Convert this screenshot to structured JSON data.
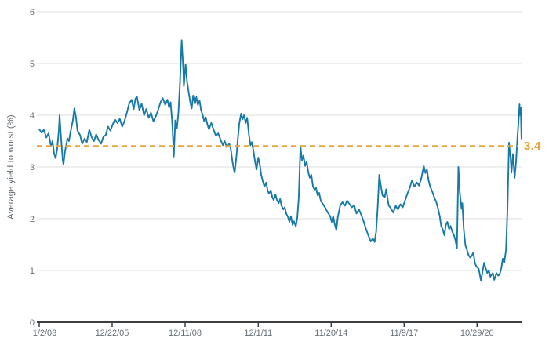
{
  "chart_data": {
    "type": "line",
    "title": "",
    "xlabel": "",
    "ylabel": "Average yield to worst (%)",
    "ylim": [
      0,
      6
    ],
    "y_ticks": [
      0,
      1,
      2,
      3,
      4,
      5,
      6
    ],
    "x_ticks": [
      {
        "label": "1/2/03",
        "year": 2003.0
      },
      {
        "label": "12/22/05",
        "year": 2005.97
      },
      {
        "label": "12/11/08",
        "year": 2008.94
      },
      {
        "label": "12/1/11",
        "year": 2011.92
      },
      {
        "label": "11/20/14",
        "year": 2014.89
      },
      {
        "label": "11/9/17",
        "year": 2017.86
      },
      {
        "label": "10/29/20",
        "year": 2020.83
      }
    ],
    "grid": "horizontal-light",
    "legend": "none",
    "reference_line": {
      "value": 3.4,
      "label": "3.4",
      "color": "#e8a33c",
      "style": "dashed"
    },
    "series": [
      {
        "name": "Average yield to worst (%)",
        "color": "#1779a7",
        "points": [
          [
            2003.0,
            3.73
          ],
          [
            2003.1,
            3.66
          ],
          [
            2003.19,
            3.72
          ],
          [
            2003.29,
            3.57
          ],
          [
            2003.38,
            3.65
          ],
          [
            2003.48,
            3.4
          ],
          [
            2003.54,
            3.5
          ],
          [
            2003.61,
            3.25
          ],
          [
            2003.67,
            3.17
          ],
          [
            2003.73,
            3.35
          ],
          [
            2003.8,
            3.7
          ],
          [
            2003.83,
            4.0
          ],
          [
            2003.89,
            3.55
          ],
          [
            2003.96,
            3.12
          ],
          [
            2003.99,
            3.05
          ],
          [
            2004.05,
            3.3
          ],
          [
            2004.15,
            3.55
          ],
          [
            2004.21,
            3.5
          ],
          [
            2004.27,
            3.67
          ],
          [
            2004.37,
            3.9
          ],
          [
            2004.43,
            4.13
          ],
          [
            2004.5,
            3.95
          ],
          [
            2004.56,
            3.7
          ],
          [
            2004.66,
            3.62
          ],
          [
            2004.75,
            3.45
          ],
          [
            2004.85,
            3.55
          ],
          [
            2004.94,
            3.48
          ],
          [
            2005.04,
            3.72
          ],
          [
            2005.13,
            3.58
          ],
          [
            2005.23,
            3.5
          ],
          [
            2005.32,
            3.63
          ],
          [
            2005.42,
            3.52
          ],
          [
            2005.52,
            3.45
          ],
          [
            2005.61,
            3.58
          ],
          [
            2005.71,
            3.62
          ],
          [
            2005.8,
            3.78
          ],
          [
            2005.9,
            3.7
          ],
          [
            2005.99,
            3.82
          ],
          [
            2006.09,
            3.92
          ],
          [
            2006.18,
            3.85
          ],
          [
            2006.28,
            3.93
          ],
          [
            2006.38,
            3.78
          ],
          [
            2006.47,
            3.88
          ],
          [
            2006.57,
            4.05
          ],
          [
            2006.66,
            4.22
          ],
          [
            2006.76,
            4.3
          ],
          [
            2006.85,
            4.12
          ],
          [
            2006.92,
            4.32
          ],
          [
            2006.98,
            4.36
          ],
          [
            2007.08,
            4.1
          ],
          [
            2007.17,
            4.22
          ],
          [
            2007.27,
            4.0
          ],
          [
            2007.36,
            4.12
          ],
          [
            2007.46,
            3.95
          ],
          [
            2007.55,
            4.05
          ],
          [
            2007.65,
            3.88
          ],
          [
            2007.75,
            3.98
          ],
          [
            2007.84,
            4.1
          ],
          [
            2007.94,
            4.25
          ],
          [
            2008.03,
            4.33
          ],
          [
            2008.13,
            4.2
          ],
          [
            2008.22,
            4.3
          ],
          [
            2008.29,
            4.15
          ],
          [
            2008.35,
            4.25
          ],
          [
            2008.41,
            3.9
          ],
          [
            2008.45,
            3.55
          ],
          [
            2008.48,
            3.2
          ],
          [
            2008.54,
            3.9
          ],
          [
            2008.61,
            3.75
          ],
          [
            2008.67,
            4.05
          ],
          [
            2008.73,
            4.6
          ],
          [
            2008.8,
            5.45
          ],
          [
            2008.86,
            4.95
          ],
          [
            2008.89,
            4.56
          ],
          [
            2008.96,
            4.99
          ],
          [
            2009.02,
            4.65
          ],
          [
            2009.08,
            4.46
          ],
          [
            2009.15,
            4.25
          ],
          [
            2009.21,
            4.13
          ],
          [
            2009.27,
            4.38
          ],
          [
            2009.34,
            4.22
          ],
          [
            2009.4,
            4.35
          ],
          [
            2009.46,
            4.2
          ],
          [
            2009.53,
            4.28
          ],
          [
            2009.59,
            4.1
          ],
          [
            2009.66,
            4.0
          ],
          [
            2009.72,
            3.88
          ],
          [
            2009.78,
            3.96
          ],
          [
            2009.85,
            3.82
          ],
          [
            2009.91,
            3.73
          ],
          [
            2010.01,
            3.85
          ],
          [
            2010.1,
            3.72
          ],
          [
            2010.2,
            3.6
          ],
          [
            2010.29,
            3.65
          ],
          [
            2010.39,
            3.52
          ],
          [
            2010.48,
            3.42
          ],
          [
            2010.55,
            3.5
          ],
          [
            2010.64,
            3.38
          ],
          [
            2010.74,
            3.45
          ],
          [
            2010.8,
            3.35
          ],
          [
            2010.87,
            3.1
          ],
          [
            2010.93,
            2.94
          ],
          [
            2010.96,
            2.89
          ],
          [
            2011.03,
            3.2
          ],
          [
            2011.09,
            3.55
          ],
          [
            2011.15,
            3.85
          ],
          [
            2011.22,
            4.03
          ],
          [
            2011.28,
            3.92
          ],
          [
            2011.34,
            4.0
          ],
          [
            2011.41,
            3.85
          ],
          [
            2011.47,
            3.95
          ],
          [
            2011.54,
            3.62
          ],
          [
            2011.6,
            3.42
          ],
          [
            2011.66,
            3.48
          ],
          [
            2011.73,
            3.3
          ],
          [
            2011.79,
            3.1
          ],
          [
            2011.85,
            2.95
          ],
          [
            2011.92,
            3.18
          ],
          [
            2011.98,
            3.05
          ],
          [
            2012.04,
            2.85
          ],
          [
            2012.11,
            2.72
          ],
          [
            2012.17,
            2.62
          ],
          [
            2012.24,
            2.7
          ],
          [
            2012.3,
            2.55
          ],
          [
            2012.36,
            2.48
          ],
          [
            2012.43,
            2.55
          ],
          [
            2012.49,
            2.42
          ],
          [
            2012.55,
            2.36
          ],
          [
            2012.62,
            2.47
          ],
          [
            2012.68,
            2.36
          ],
          [
            2012.75,
            2.3
          ],
          [
            2012.81,
            2.38
          ],
          [
            2012.87,
            2.25
          ],
          [
            2012.94,
            2.18
          ],
          [
            2013.0,
            2.22
          ],
          [
            2013.06,
            2.1
          ],
          [
            2013.13,
            2.03
          ],
          [
            2013.19,
            1.94
          ],
          [
            2013.25,
            2.05
          ],
          [
            2013.32,
            1.88
          ],
          [
            2013.38,
            1.95
          ],
          [
            2013.45,
            1.85
          ],
          [
            2013.51,
            2.03
          ],
          [
            2013.57,
            2.4
          ],
          [
            2013.64,
            3.41
          ],
          [
            2013.7,
            3.12
          ],
          [
            2013.76,
            3.22
          ],
          [
            2013.83,
            3.02
          ],
          [
            2013.89,
            3.1
          ],
          [
            2013.96,
            2.89
          ],
          [
            2014.02,
            2.79
          ],
          [
            2014.08,
            2.85
          ],
          [
            2014.15,
            2.62
          ],
          [
            2014.21,
            2.56
          ],
          [
            2014.27,
            2.6
          ],
          [
            2014.34,
            2.45
          ],
          [
            2014.4,
            2.5
          ],
          [
            2014.47,
            2.34
          ],
          [
            2014.56,
            2.28
          ],
          [
            2014.66,
            2.2
          ],
          [
            2014.75,
            2.12
          ],
          [
            2014.85,
            2.05
          ],
          [
            2014.91,
            1.94
          ],
          [
            2014.97,
            2.05
          ],
          [
            2015.04,
            1.88
          ],
          [
            2015.1,
            1.78
          ],
          [
            2015.16,
            2.03
          ],
          [
            2015.26,
            2.26
          ],
          [
            2015.35,
            2.32
          ],
          [
            2015.45,
            2.25
          ],
          [
            2015.54,
            2.35
          ],
          [
            2015.64,
            2.28
          ],
          [
            2015.73,
            2.22
          ],
          [
            2015.83,
            2.26
          ],
          [
            2015.92,
            2.1
          ],
          [
            2016.02,
            2.18
          ],
          [
            2016.11,
            2.08
          ],
          [
            2016.21,
            1.95
          ],
          [
            2016.31,
            1.8
          ],
          [
            2016.4,
            1.68
          ],
          [
            2016.5,
            1.56
          ],
          [
            2016.59,
            1.62
          ],
          [
            2016.66,
            1.55
          ],
          [
            2016.72,
            1.75
          ],
          [
            2016.78,
            2.2
          ],
          [
            2016.85,
            2.85
          ],
          [
            2016.91,
            2.65
          ],
          [
            2016.98,
            2.45
          ],
          [
            2017.07,
            2.41
          ],
          [
            2017.13,
            2.57
          ],
          [
            2017.23,
            2.26
          ],
          [
            2017.32,
            2.2
          ],
          [
            2017.42,
            2.12
          ],
          [
            2017.52,
            2.25
          ],
          [
            2017.61,
            2.18
          ],
          [
            2017.71,
            2.28
          ],
          [
            2017.8,
            2.22
          ],
          [
            2017.9,
            2.35
          ],
          [
            2017.99,
            2.48
          ],
          [
            2018.09,
            2.6
          ],
          [
            2018.18,
            2.74
          ],
          [
            2018.28,
            2.62
          ],
          [
            2018.38,
            2.7
          ],
          [
            2018.47,
            2.64
          ],
          [
            2018.57,
            2.8
          ],
          [
            2018.66,
            3.02
          ],
          [
            2018.73,
            2.88
          ],
          [
            2018.79,
            2.95
          ],
          [
            2018.85,
            2.75
          ],
          [
            2018.92,
            2.62
          ],
          [
            2019.01,
            2.52
          ],
          [
            2019.08,
            2.42
          ],
          [
            2019.17,
            2.32
          ],
          [
            2019.24,
            2.2
          ],
          [
            2019.31,
            2.05
          ],
          [
            2019.37,
            1.86
          ],
          [
            2019.43,
            1.8
          ],
          [
            2019.5,
            1.68
          ],
          [
            2019.56,
            1.88
          ],
          [
            2019.62,
            1.94
          ],
          [
            2019.69,
            1.8
          ],
          [
            2019.75,
            1.86
          ],
          [
            2019.82,
            1.75
          ],
          [
            2019.88,
            1.7
          ],
          [
            2019.94,
            1.6
          ],
          [
            2020.01,
            1.43
          ],
          [
            2020.07,
            3.0
          ],
          [
            2020.13,
            2.5
          ],
          [
            2020.2,
            2.19
          ],
          [
            2020.23,
            2.3
          ],
          [
            2020.29,
            1.8
          ],
          [
            2020.36,
            1.48
          ],
          [
            2020.42,
            1.4
          ],
          [
            2020.48,
            1.3
          ],
          [
            2020.55,
            1.25
          ],
          [
            2020.61,
            1.28
          ],
          [
            2020.68,
            1.35
          ],
          [
            2020.74,
            1.15
          ],
          [
            2020.8,
            1.08
          ],
          [
            2020.9,
            1.03
          ],
          [
            2020.99,
            0.8
          ],
          [
            2021.06,
            1.0
          ],
          [
            2021.12,
            1.15
          ],
          [
            2021.18,
            1.05
          ],
          [
            2021.25,
            0.95
          ],
          [
            2021.31,
            1.0
          ],
          [
            2021.37,
            0.88
          ],
          [
            2021.47,
            0.95
          ],
          [
            2021.53,
            0.82
          ],
          [
            2021.62,
            0.95
          ],
          [
            2021.69,
            0.9
          ],
          [
            2021.75,
            0.93
          ],
          [
            2021.82,
            1.05
          ],
          [
            2021.88,
            1.23
          ],
          [
            2021.94,
            1.15
          ],
          [
            2022.01,
            1.4
          ],
          [
            2022.07,
            2.2
          ],
          [
            2022.13,
            3.47
          ],
          [
            2022.2,
            3.15
          ],
          [
            2022.23,
            2.89
          ],
          [
            2022.29,
            3.25
          ],
          [
            2022.36,
            2.79
          ],
          [
            2022.42,
            3.1
          ],
          [
            2022.48,
            3.6
          ],
          [
            2022.53,
            3.95
          ],
          [
            2022.56,
            4.21
          ],
          [
            2022.59,
            4.0
          ],
          [
            2022.61,
            4.15
          ],
          [
            2022.64,
            3.55
          ]
        ]
      }
    ]
  },
  "colors": {
    "line": "#1779a7",
    "reference": "#e8a33c",
    "grid": "#dddddd",
    "axis": "#3c4043",
    "tick_text": "#66707a",
    "background": "#ffffff"
  }
}
